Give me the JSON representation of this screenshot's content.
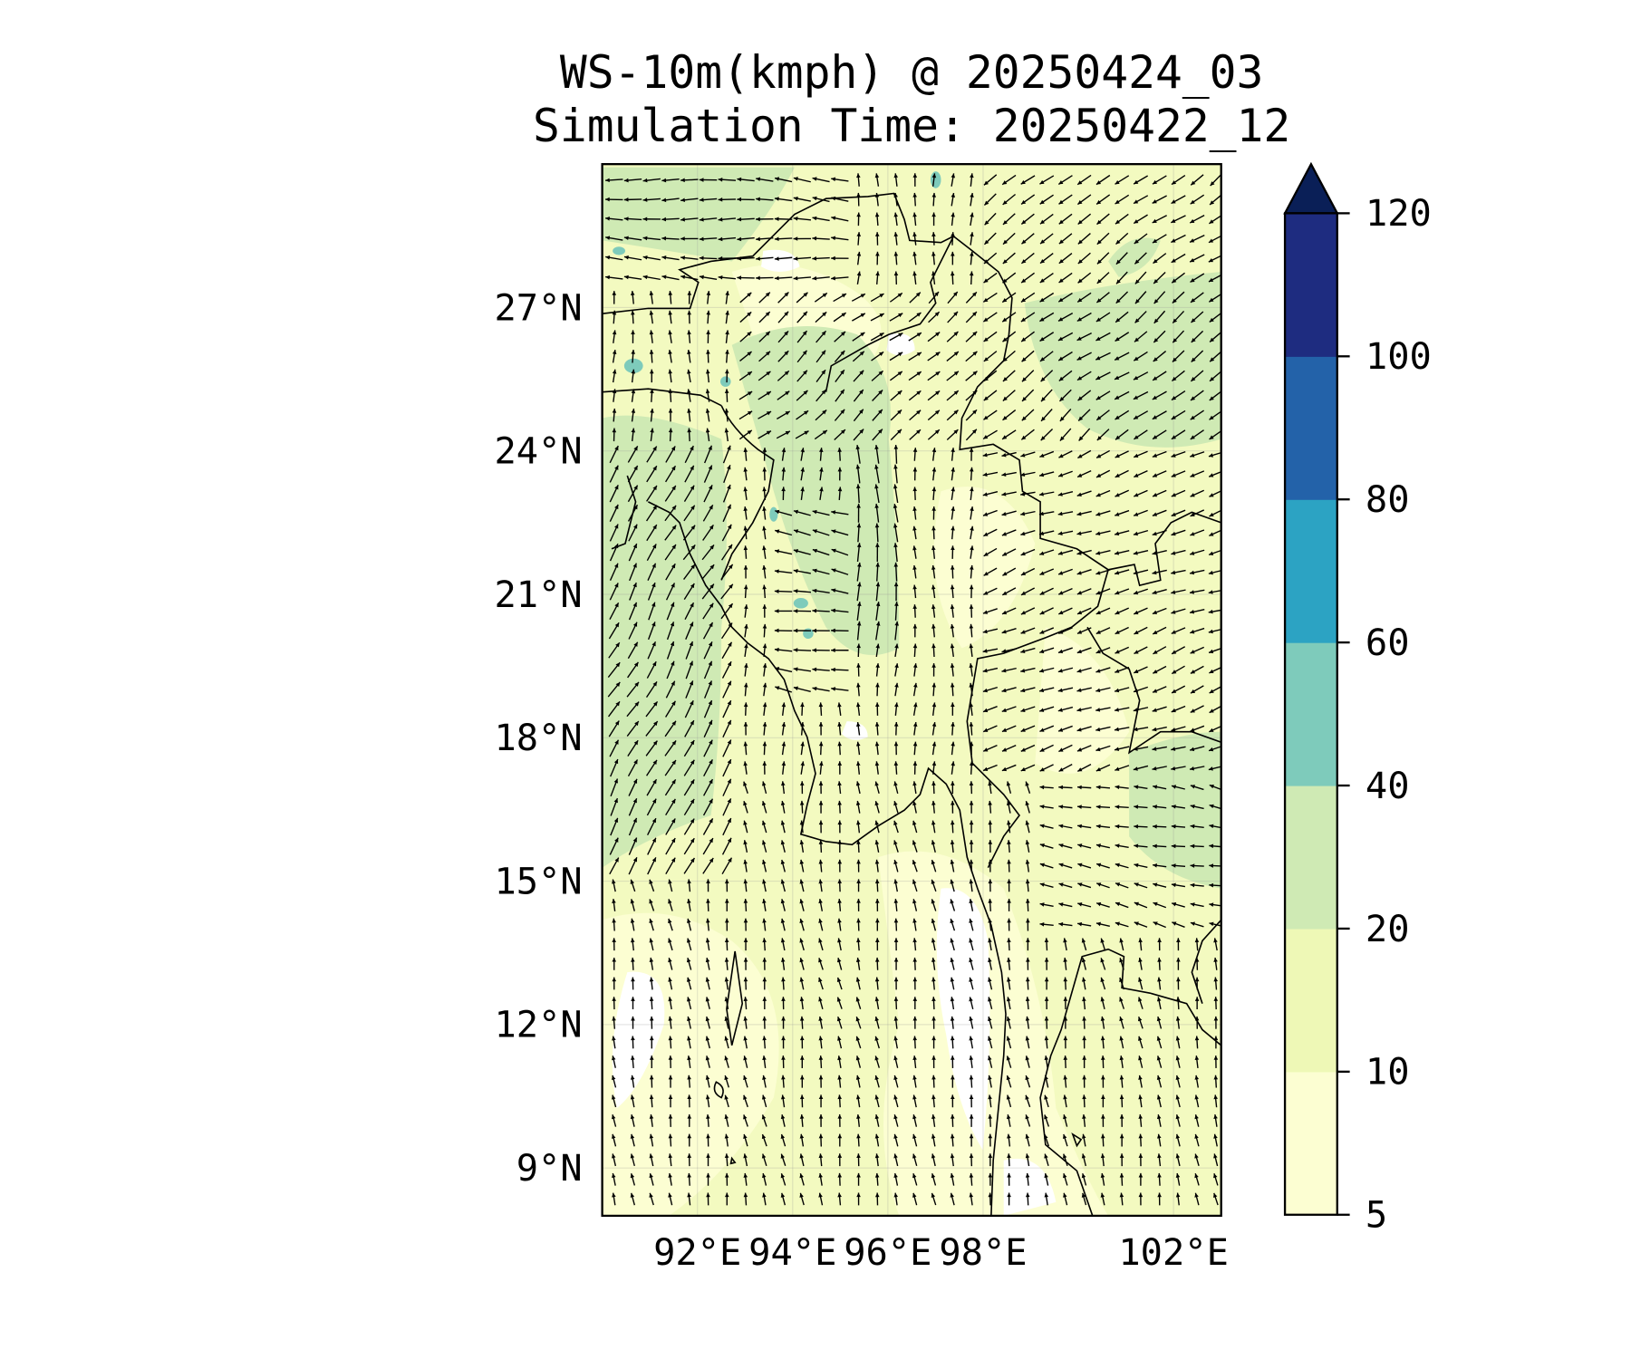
{
  "chart_data": {
    "type": "contour-map-with-wind-vectors",
    "title": "WS-10m(kmph) @ 20250424_03",
    "subtitle": "Simulation Time: 20250422_12",
    "variable": "10 m wind speed",
    "units": "kmph",
    "extent": {
      "lon": [
        90,
        103
      ],
      "lat": [
        8,
        30
      ]
    },
    "x_ticks": [
      {
        "value": 92,
        "label": "92°E"
      },
      {
        "value": 94,
        "label": "94°E"
      },
      {
        "value": 96,
        "label": "96°E"
      },
      {
        "value": 98,
        "label": "98°E"
      },
      {
        "value": 102,
        "label": "102°E"
      }
    ],
    "y_ticks": [
      {
        "value": 9,
        "label": "9°N"
      },
      {
        "value": 12,
        "label": "12°N"
      },
      {
        "value": 15,
        "label": "15°N"
      },
      {
        "value": 18,
        "label": "18°N"
      },
      {
        "value": 21,
        "label": "21°N"
      },
      {
        "value": 24,
        "label": "24°N"
      },
      {
        "value": 27,
        "label": "27°N"
      }
    ],
    "grid": true,
    "colorbar": {
      "levels": [
        5,
        10,
        20,
        40,
        60,
        80,
        100,
        120
      ],
      "labels": [
        "5",
        "10",
        "20",
        "40",
        "60",
        "80",
        "100",
        "120"
      ],
      "colors": [
        "#fcfed2",
        "#eef8b6",
        "#cfeab4",
        "#7ecbbb",
        "#2ca3c3",
        "#2362a9",
        "#1e2c80"
      ],
      "extend_max_color": "#0a1f57",
      "extend": "max",
      "placement": "right"
    },
    "observed_speed_range_kmph": [
      0,
      40
    ]
  }
}
